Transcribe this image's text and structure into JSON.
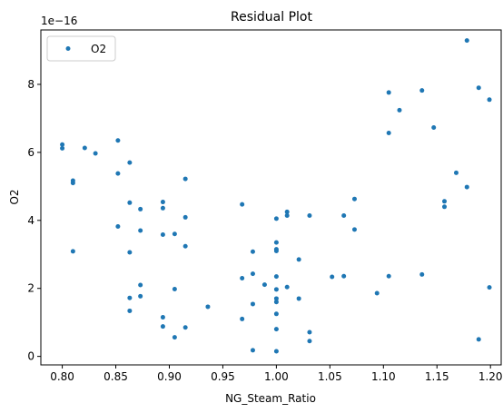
{
  "chart_data": {
    "type": "scatter",
    "title": "Residual Plot",
    "xlabel": "NG_Steam_Ratio",
    "ylabel": "O2",
    "y_scale_label": "1e−16",
    "xlim": [
      0.78,
      1.21
    ],
    "ylim": [
      -0.25,
      9.6
    ],
    "x_ticks": [
      0.8,
      0.85,
      0.9,
      0.95,
      1.0,
      1.05,
      1.1,
      1.15,
      1.2
    ],
    "x_tick_labels": [
      "0.80",
      "0.85",
      "0.90",
      "0.95",
      "1.00",
      "1.05",
      "1.10",
      "1.15",
      "1.20"
    ],
    "y_ticks": [
      0,
      2,
      4,
      6,
      8
    ],
    "y_tick_labels": [
      "0",
      "2",
      "4",
      "6",
      "8"
    ],
    "grid": false,
    "legend_position": "top-left",
    "series": [
      {
        "name": "O2",
        "color": "#1f77b4",
        "points": [
          [
            0.8,
            6.23
          ],
          [
            0.8,
            6.12
          ],
          [
            0.81,
            5.17
          ],
          [
            0.81,
            5.1
          ],
          [
            0.81,
            3.09
          ],
          [
            0.821,
            6.13
          ],
          [
            0.831,
            5.97
          ],
          [
            0.852,
            6.35
          ],
          [
            0.852,
            5.38
          ],
          [
            0.852,
            3.82
          ],
          [
            0.863,
            5.7
          ],
          [
            0.863,
            4.52
          ],
          [
            0.863,
            3.06
          ],
          [
            0.863,
            1.72
          ],
          [
            0.863,
            1.34
          ],
          [
            0.873,
            4.33
          ],
          [
            0.873,
            3.7
          ],
          [
            0.873,
            2.1
          ],
          [
            0.873,
            1.77
          ],
          [
            0.894,
            4.54
          ],
          [
            0.894,
            4.36
          ],
          [
            0.894,
            3.58
          ],
          [
            0.894,
            1.15
          ],
          [
            0.894,
            0.88
          ],
          [
            0.905,
            3.6
          ],
          [
            0.905,
            1.98
          ],
          [
            0.905,
            0.56
          ],
          [
            0.915,
            5.22
          ],
          [
            0.915,
            4.09
          ],
          [
            0.915,
            3.24
          ],
          [
            0.915,
            0.85
          ],
          [
            0.936,
            1.46
          ],
          [
            0.968,
            4.47
          ],
          [
            0.968,
            2.3
          ],
          [
            0.968,
            1.1
          ],
          [
            0.978,
            3.08
          ],
          [
            0.978,
            2.43
          ],
          [
            0.978,
            1.54
          ],
          [
            0.978,
            0.18
          ],
          [
            0.989,
            2.11
          ],
          [
            1.0,
            4.05
          ],
          [
            1.0,
            3.35
          ],
          [
            1.0,
            3.15
          ],
          [
            1.0,
            3.1
          ],
          [
            1.0,
            2.35
          ],
          [
            1.0,
            1.97
          ],
          [
            1.0,
            1.7
          ],
          [
            1.0,
            1.6
          ],
          [
            1.0,
            1.25
          ],
          [
            1.0,
            0.8
          ],
          [
            1.0,
            0.15
          ],
          [
            1.01,
            4.25
          ],
          [
            1.01,
            4.14
          ],
          [
            1.01,
            2.04
          ],
          [
            1.021,
            2.85
          ],
          [
            1.021,
            1.7
          ],
          [
            1.031,
            4.14
          ],
          [
            1.031,
            0.71
          ],
          [
            1.031,
            0.45
          ],
          [
            1.052,
            2.34
          ],
          [
            1.063,
            4.14
          ],
          [
            1.063,
            2.36
          ],
          [
            1.073,
            4.63
          ],
          [
            1.073,
            3.73
          ],
          [
            1.094,
            1.86
          ],
          [
            1.105,
            7.76
          ],
          [
            1.105,
            6.57
          ],
          [
            1.105,
            2.36
          ],
          [
            1.115,
            7.24
          ],
          [
            1.136,
            7.82
          ],
          [
            1.136,
            2.41
          ],
          [
            1.147,
            6.73
          ],
          [
            1.157,
            4.56
          ],
          [
            1.157,
            4.4
          ],
          [
            1.168,
            5.4
          ],
          [
            1.178,
            9.29
          ],
          [
            1.178,
            4.98
          ],
          [
            1.189,
            7.9
          ],
          [
            1.189,
            0.5
          ],
          [
            1.199,
            7.55
          ],
          [
            1.199,
            2.03
          ]
        ]
      }
    ]
  }
}
